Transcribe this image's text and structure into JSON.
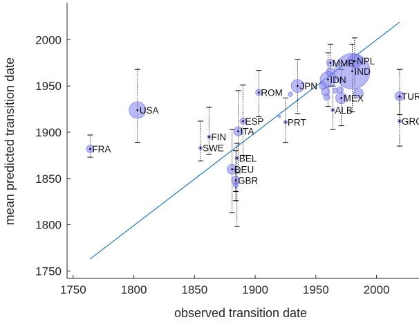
{
  "chart_data": {
    "type": "scatter",
    "title": "",
    "xlabel": "observed transition date",
    "ylabel": "mean predicted transition date",
    "xlim": [
      1745,
      2035
    ],
    "ylim": [
      1742,
      2040
    ],
    "xticks": [
      1750,
      1800,
      1850,
      1900,
      1950,
      2000
    ],
    "yticks": [
      1750,
      1800,
      1850,
      1900,
      1950,
      2000
    ],
    "grid": false,
    "legend": "none",
    "colors": {
      "bubble_fill": "#8080f0",
      "bubble_stroke": "#6a6ad8",
      "fit_line": "#1f77b4",
      "error_bar": "#000000",
      "axis": "#262626"
    },
    "fit_line": {
      "x": [
        1764,
        2019
      ],
      "y": [
        1763,
        2019
      ]
    },
    "points": [
      {
        "label": "FRA",
        "x": 1764,
        "y": 1882,
        "err_low": 1873,
        "err_high": 1897,
        "size": 4
      },
      {
        "label": "USA",
        "x": 1803,
        "y": 1924,
        "err_low": 1889,
        "err_high": 1968,
        "size": 20
      },
      {
        "label": "SWE",
        "x": 1855,
        "y": 1883,
        "err_low": 1869,
        "err_high": 1912,
        "size": 1
      },
      {
        "label": "FIN",
        "x": 1862,
        "y": 1895,
        "err_low": 1876,
        "err_high": 1927,
        "size": 1
      },
      {
        "label": "BEL",
        "x": 1885,
        "y": 1872,
        "err_low": 1798,
        "err_high": 1888,
        "size": 1
      },
      {
        "label": "ITA",
        "x": 1886,
        "y": 1901,
        "err_low": 1856,
        "err_high": 1945,
        "size": 6
      },
      {
        "label": "ESP",
        "x": 1890,
        "y": 1912,
        "err_low": 1875,
        "err_high": 1951,
        "size": 3
      },
      {
        "label": "DEU",
        "x": 1881,
        "y": 1860,
        "err_low": 1813,
        "err_high": 1903,
        "size": 7
      },
      {
        "label": "GBR",
        "x": 1884,
        "y": 1848,
        "err_low": 1826,
        "err_high": 1880,
        "size": 5
      },
      {
        "label": "",
        "x": 1884,
        "y": 1843,
        "err_low": 1836,
        "err_high": 1860,
        "size": 2
      },
      {
        "label": "ROM",
        "x": 1903,
        "y": 1943,
        "err_low": 1917,
        "err_high": 1967,
        "size": 3
      },
      {
        "label": "",
        "x": 1920,
        "y": 1917,
        "err_low": 1917,
        "err_high": 1917,
        "size": 0.5
      },
      {
        "label": "PRT",
        "x": 1925,
        "y": 1911,
        "err_low": 1889,
        "err_high": 1937,
        "size": 1
      },
      {
        "label": "",
        "x": 1929,
        "y": 1941,
        "err_low": 1941,
        "err_high": 1941,
        "size": 1.5
      },
      {
        "label": "JPN",
        "x": 1935,
        "y": 1950,
        "err_low": 1920,
        "err_high": 1979,
        "size": 12
      },
      {
        "label": "IDN",
        "x": 1960,
        "y": 1957,
        "err_low": 1928,
        "err_high": 1986,
        "size": 18
      },
      {
        "label": "",
        "x": 1956,
        "y": 1950,
        "err_low": 1950,
        "err_high": 1950,
        "size": 4
      },
      {
        "label": "",
        "x": 1958,
        "y": 1944,
        "err_low": 1944,
        "err_high": 1944,
        "size": 5
      },
      {
        "label": "",
        "x": 1959,
        "y": 1938,
        "err_low": 1938,
        "err_high": 1938,
        "size": 3
      },
      {
        "label": "",
        "x": 1962,
        "y": 1965,
        "err_low": 1965,
        "err_high": 1965,
        "size": 5
      },
      {
        "label": "",
        "x": 1966,
        "y": 1945,
        "err_low": 1945,
        "err_high": 1945,
        "size": 2
      },
      {
        "label": "MMR",
        "x": 1962,
        "y": 1975,
        "err_low": 1950,
        "err_high": 1995,
        "size": 4
      },
      {
        "label": "ALB",
        "x": 1964,
        "y": 1924,
        "err_low": 1903,
        "err_high": 1950,
        "size": 1
      },
      {
        "label": "",
        "x": 1970,
        "y": 1946,
        "err_low": 1946,
        "err_high": 1946,
        "size": 3
      },
      {
        "label": "MEX",
        "x": 1971,
        "y": 1937,
        "err_low": 1907,
        "err_high": 1968,
        "size": 9
      },
      {
        "label": "",
        "x": 1985,
        "y": 1942,
        "err_low": 1942,
        "err_high": 1942,
        "size": 7
      },
      {
        "label": "NPL",
        "x": 1982,
        "y": 1977,
        "err_low": 1940,
        "err_high": 2002,
        "size": 14
      },
      {
        "label": "IND",
        "x": 1980,
        "y": 1966,
        "err_low": 1922,
        "err_high": 1995,
        "size": 90
      },
      {
        "label": "TUR",
        "x": 2019,
        "y": 1939,
        "err_low": 1919,
        "err_high": 1968,
        "size": 6
      },
      {
        "label": "GRC",
        "x": 2019,
        "y": 1912,
        "err_low": 1885,
        "err_high": 1938,
        "size": 1
      }
    ]
  }
}
